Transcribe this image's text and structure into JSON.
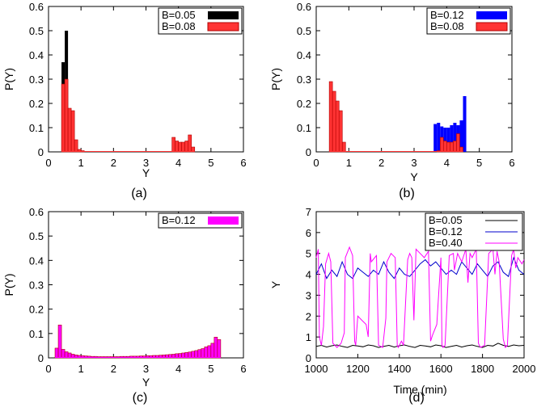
{
  "chart_data": [
    {
      "type": "bar",
      "panel_label": "(a)",
      "xlabel": "Y",
      "ylabel": "P(Y)",
      "xlim": [
        0,
        6
      ],
      "ylim": [
        0,
        0.6
      ],
      "xticks": [
        "0",
        "1",
        "2",
        "3",
        "4",
        "5",
        "6"
      ],
      "yticks": [
        "0",
        "0.1",
        "0.2",
        "0.3",
        "0.4",
        "0.5",
        "0.6"
      ],
      "bin_width": 0.1,
      "legend_position": "top-right",
      "series": [
        {
          "name": "B=0.05",
          "color": "#000000",
          "bins": [
            [
              0.45,
              0.37
            ],
            [
              0.55,
              0.5
            ],
            [
              0.65,
              0.02
            ],
            [
              0.75,
              0.005
            ]
          ]
        },
        {
          "name": "B=0.08",
          "color": "#ff3333",
          "bins": [
            [
              0.45,
              0.28
            ],
            [
              0.55,
              0.3
            ],
            [
              0.65,
              0.18
            ],
            [
              0.75,
              0.17
            ],
            [
              0.85,
              0.05
            ],
            [
              0.95,
              0.01
            ],
            [
              1.05,
              0.005
            ],
            [
              3.85,
              0.06
            ],
            [
              3.95,
              0.045
            ],
            [
              4.05,
              0.04
            ],
            [
              4.15,
              0.04
            ],
            [
              4.25,
              0.045
            ],
            [
              4.35,
              0.07
            ],
            [
              4.45,
              0.02
            ]
          ]
        }
      ]
    },
    {
      "type": "bar",
      "panel_label": "(b)",
      "xlabel": "Y",
      "ylabel": "P(Y)",
      "xlim": [
        0,
        6
      ],
      "ylim": [
        0,
        0.6
      ],
      "xticks": [
        "0",
        "1",
        "2",
        "3",
        "4",
        "5",
        "6"
      ],
      "yticks": [
        "0",
        "0.1",
        "0.2",
        "0.3",
        "0.4",
        "0.5",
        "0.6"
      ],
      "bin_width": 0.1,
      "legend_position": "top-right",
      "series": [
        {
          "name": "B=0.12",
          "color": "#0000ff",
          "bins": [
            [
              3.65,
              0.115
            ],
            [
              3.75,
              0.12
            ],
            [
              3.85,
              0.105
            ],
            [
              3.95,
              0.1
            ],
            [
              4.05,
              0.1
            ],
            [
              4.15,
              0.11
            ],
            [
              4.25,
              0.12
            ],
            [
              4.35,
              0.11
            ],
            [
              4.45,
              0.13
            ],
            [
              4.55,
              0.23
            ]
          ]
        },
        {
          "name": "B=0.08",
          "color": "#ff3333",
          "bins": [
            [
              0.45,
              0.29
            ],
            [
              0.55,
              0.25
            ],
            [
              0.65,
              0.21
            ],
            [
              0.75,
              0.17
            ],
            [
              0.85,
              0.04
            ],
            [
              3.75,
              0.005
            ],
            [
              3.85,
              0.06
            ],
            [
              3.95,
              0.045
            ],
            [
              4.05,
              0.04
            ],
            [
              4.15,
              0.04
            ],
            [
              4.25,
              0.045
            ],
            [
              4.35,
              0.075
            ],
            [
              4.45,
              0.02
            ]
          ]
        }
      ]
    },
    {
      "type": "bar",
      "panel_label": "(c)",
      "xlabel": "Y",
      "ylabel": "P(Y)",
      "xlim": [
        0,
        6
      ],
      "ylim": [
        0,
        0.6
      ],
      "xticks": [
        "0",
        "1",
        "2",
        "3",
        "4",
        "5",
        "6"
      ],
      "yticks": [
        "0",
        "0.1",
        "0.2",
        "0.3",
        "0.4",
        "0.5",
        "0.6"
      ],
      "bin_width": 0.1,
      "legend_position": "top-right",
      "series": [
        {
          "name": "B=0.12",
          "color": "#ff00ff",
          "bins": [
            [
              0.25,
              0.04
            ],
            [
              0.35,
              0.135
            ],
            [
              0.45,
              0.035
            ],
            [
              0.55,
              0.025
            ],
            [
              0.65,
              0.02
            ],
            [
              0.75,
              0.015
            ],
            [
              0.85,
              0.012
            ],
            [
              0.95,
              0.01
            ],
            [
              1.05,
              0.009
            ],
            [
              1.15,
              0.008
            ],
            [
              1.25,
              0.007
            ],
            [
              1.35,
              0.006
            ],
            [
              1.45,
              0.006
            ],
            [
              1.55,
              0.005
            ],
            [
              1.65,
              0.005
            ],
            [
              1.75,
              0.005
            ],
            [
              1.85,
              0.005
            ],
            [
              1.95,
              0.005
            ],
            [
              2.05,
              0.005
            ],
            [
              2.15,
              0.005
            ],
            [
              2.25,
              0.006
            ],
            [
              2.35,
              0.006
            ],
            [
              2.45,
              0.006
            ],
            [
              2.55,
              0.007
            ],
            [
              2.65,
              0.007
            ],
            [
              2.75,
              0.007
            ],
            [
              2.85,
              0.008
            ],
            [
              2.95,
              0.008
            ],
            [
              3.05,
              0.009
            ],
            [
              3.15,
              0.009
            ],
            [
              3.25,
              0.01
            ],
            [
              3.35,
              0.01
            ],
            [
              3.45,
              0.011
            ],
            [
              3.55,
              0.012
            ],
            [
              3.65,
              0.013
            ],
            [
              3.75,
              0.014
            ],
            [
              3.85,
              0.015
            ],
            [
              3.95,
              0.017
            ],
            [
              4.05,
              0.018
            ],
            [
              4.15,
              0.02
            ],
            [
              4.25,
              0.022
            ],
            [
              4.35,
              0.024
            ],
            [
              4.45,
              0.027
            ],
            [
              4.55,
              0.03
            ],
            [
              4.65,
              0.034
            ],
            [
              4.75,
              0.038
            ],
            [
              4.85,
              0.045
            ],
            [
              4.95,
              0.05
            ],
            [
              5.05,
              0.06
            ],
            [
              5.15,
              0.085
            ],
            [
              5.25,
              0.075
            ]
          ]
        }
      ]
    },
    {
      "type": "line",
      "panel_label": "(d)",
      "xlabel": "Time (min)",
      "ylabel": "Y",
      "xlim": [
        1000,
        2000
      ],
      "ylim": [
        0,
        7
      ],
      "xticks": [
        "1000",
        "1200",
        "1400",
        "1600",
        "1800",
        "2000"
      ],
      "yticks": [
        "0",
        "1",
        "2",
        "3",
        "4",
        "5",
        "6",
        "7"
      ],
      "legend_position": "top-right",
      "series": [
        {
          "name": "B=0.05",
          "color": "#000000",
          "x": [
            1000,
            1025,
            1050,
            1075,
            1100,
            1125,
            1150,
            1175,
            1200,
            1225,
            1250,
            1275,
            1300,
            1325,
            1350,
            1375,
            1400,
            1425,
            1450,
            1475,
            1500,
            1525,
            1550,
            1575,
            1600,
            1625,
            1650,
            1675,
            1700,
            1725,
            1750,
            1775,
            1800,
            1825,
            1850,
            1875,
            1900,
            1925,
            1950,
            1975,
            2000
          ],
          "y": [
            0.55,
            0.6,
            0.52,
            0.58,
            0.62,
            0.55,
            0.5,
            0.6,
            0.57,
            0.53,
            0.62,
            0.58,
            0.5,
            0.55,
            0.6,
            0.52,
            0.58,
            0.62,
            0.55,
            0.5,
            0.6,
            0.57,
            0.53,
            0.62,
            0.58,
            0.5,
            0.55,
            0.6,
            0.52,
            0.58,
            0.62,
            0.55,
            0.5,
            0.6,
            0.57,
            0.7,
            0.6,
            0.55,
            0.62,
            0.58,
            0.6
          ]
        },
        {
          "name": "B=0.12",
          "color": "#0000cc",
          "x": [
            1000,
            1025,
            1050,
            1075,
            1100,
            1125,
            1150,
            1175,
            1200,
            1225,
            1250,
            1275,
            1300,
            1325,
            1350,
            1375,
            1400,
            1425,
            1450,
            1475,
            1500,
            1525,
            1550,
            1575,
            1600,
            1625,
            1650,
            1675,
            1700,
            1725,
            1750,
            1775,
            1800,
            1825,
            1850,
            1875,
            1900,
            1925,
            1950,
            1975,
            2000
          ],
          "y": [
            4.0,
            4.5,
            3.8,
            4.2,
            3.9,
            4.6,
            4.0,
            3.8,
            4.3,
            4.1,
            3.9,
            4.2,
            4.0,
            4.6,
            4.1,
            3.8,
            4.3,
            4.0,
            3.9,
            4.2,
            4.5,
            4.7,
            4.4,
            4.6,
            4.3,
            4.0,
            4.2,
            4.0,
            4.6,
            4.3,
            4.0,
            4.5,
            4.2,
            3.9,
            4.4,
            4.6,
            4.1,
            3.9,
            4.8,
            4.2,
            4.0
          ]
        },
        {
          "name": "B=0.40",
          "color": "#ff00ff",
          "x": [
            1000,
            1010,
            1015,
            1025,
            1035,
            1045,
            1060,
            1070,
            1080,
            1100,
            1120,
            1135,
            1140,
            1160,
            1175,
            1185,
            1190,
            1200,
            1220,
            1240,
            1250,
            1260,
            1265,
            1290,
            1300,
            1320,
            1335,
            1340,
            1360,
            1380,
            1390,
            1395,
            1410,
            1420,
            1440,
            1450,
            1460,
            1470,
            1480,
            1500,
            1520,
            1540,
            1550,
            1560,
            1580,
            1600,
            1605,
            1610,
            1620,
            1640,
            1660,
            1665,
            1680,
            1700,
            1720,
            1730,
            1740,
            1750,
            1770,
            1780,
            1790,
            1810,
            1830,
            1850,
            1860,
            1870,
            1880,
            1900,
            1910,
            1920,
            1940,
            1950,
            1960,
            1970,
            1990,
            2000
          ],
          "y": [
            4.8,
            5.2,
            1.0,
            0.6,
            1.5,
            4.5,
            5.0,
            4.6,
            0.7,
            0.5,
            0.7,
            1.2,
            4.8,
            5.3,
            4.9,
            0.8,
            0.6,
            2.0,
            1.8,
            1.6,
            1.0,
            5.0,
            4.6,
            4.9,
            0.6,
            0.5,
            1.9,
            4.6,
            5.0,
            4.8,
            0.6,
            0.5,
            0.8,
            0.6,
            4.7,
            5.0,
            4.8,
            1.8,
            5.2,
            5.0,
            4.8,
            5.1,
            0.8,
            1.1,
            1.6,
            4.8,
            0.6,
            0.5,
            0.6,
            4.9,
            5.0,
            4.2,
            5.0,
            4.6,
            5.2,
            3.6,
            5.0,
            4.8,
            5.2,
            0.7,
            0.5,
            0.6,
            5.0,
            5.2,
            4.0,
            5.1,
            4.6,
            0.9,
            0.5,
            0.6,
            4.9,
            5.2,
            4.3,
            4.8,
            4.5,
            4.7
          ]
        }
      ]
    }
  ]
}
